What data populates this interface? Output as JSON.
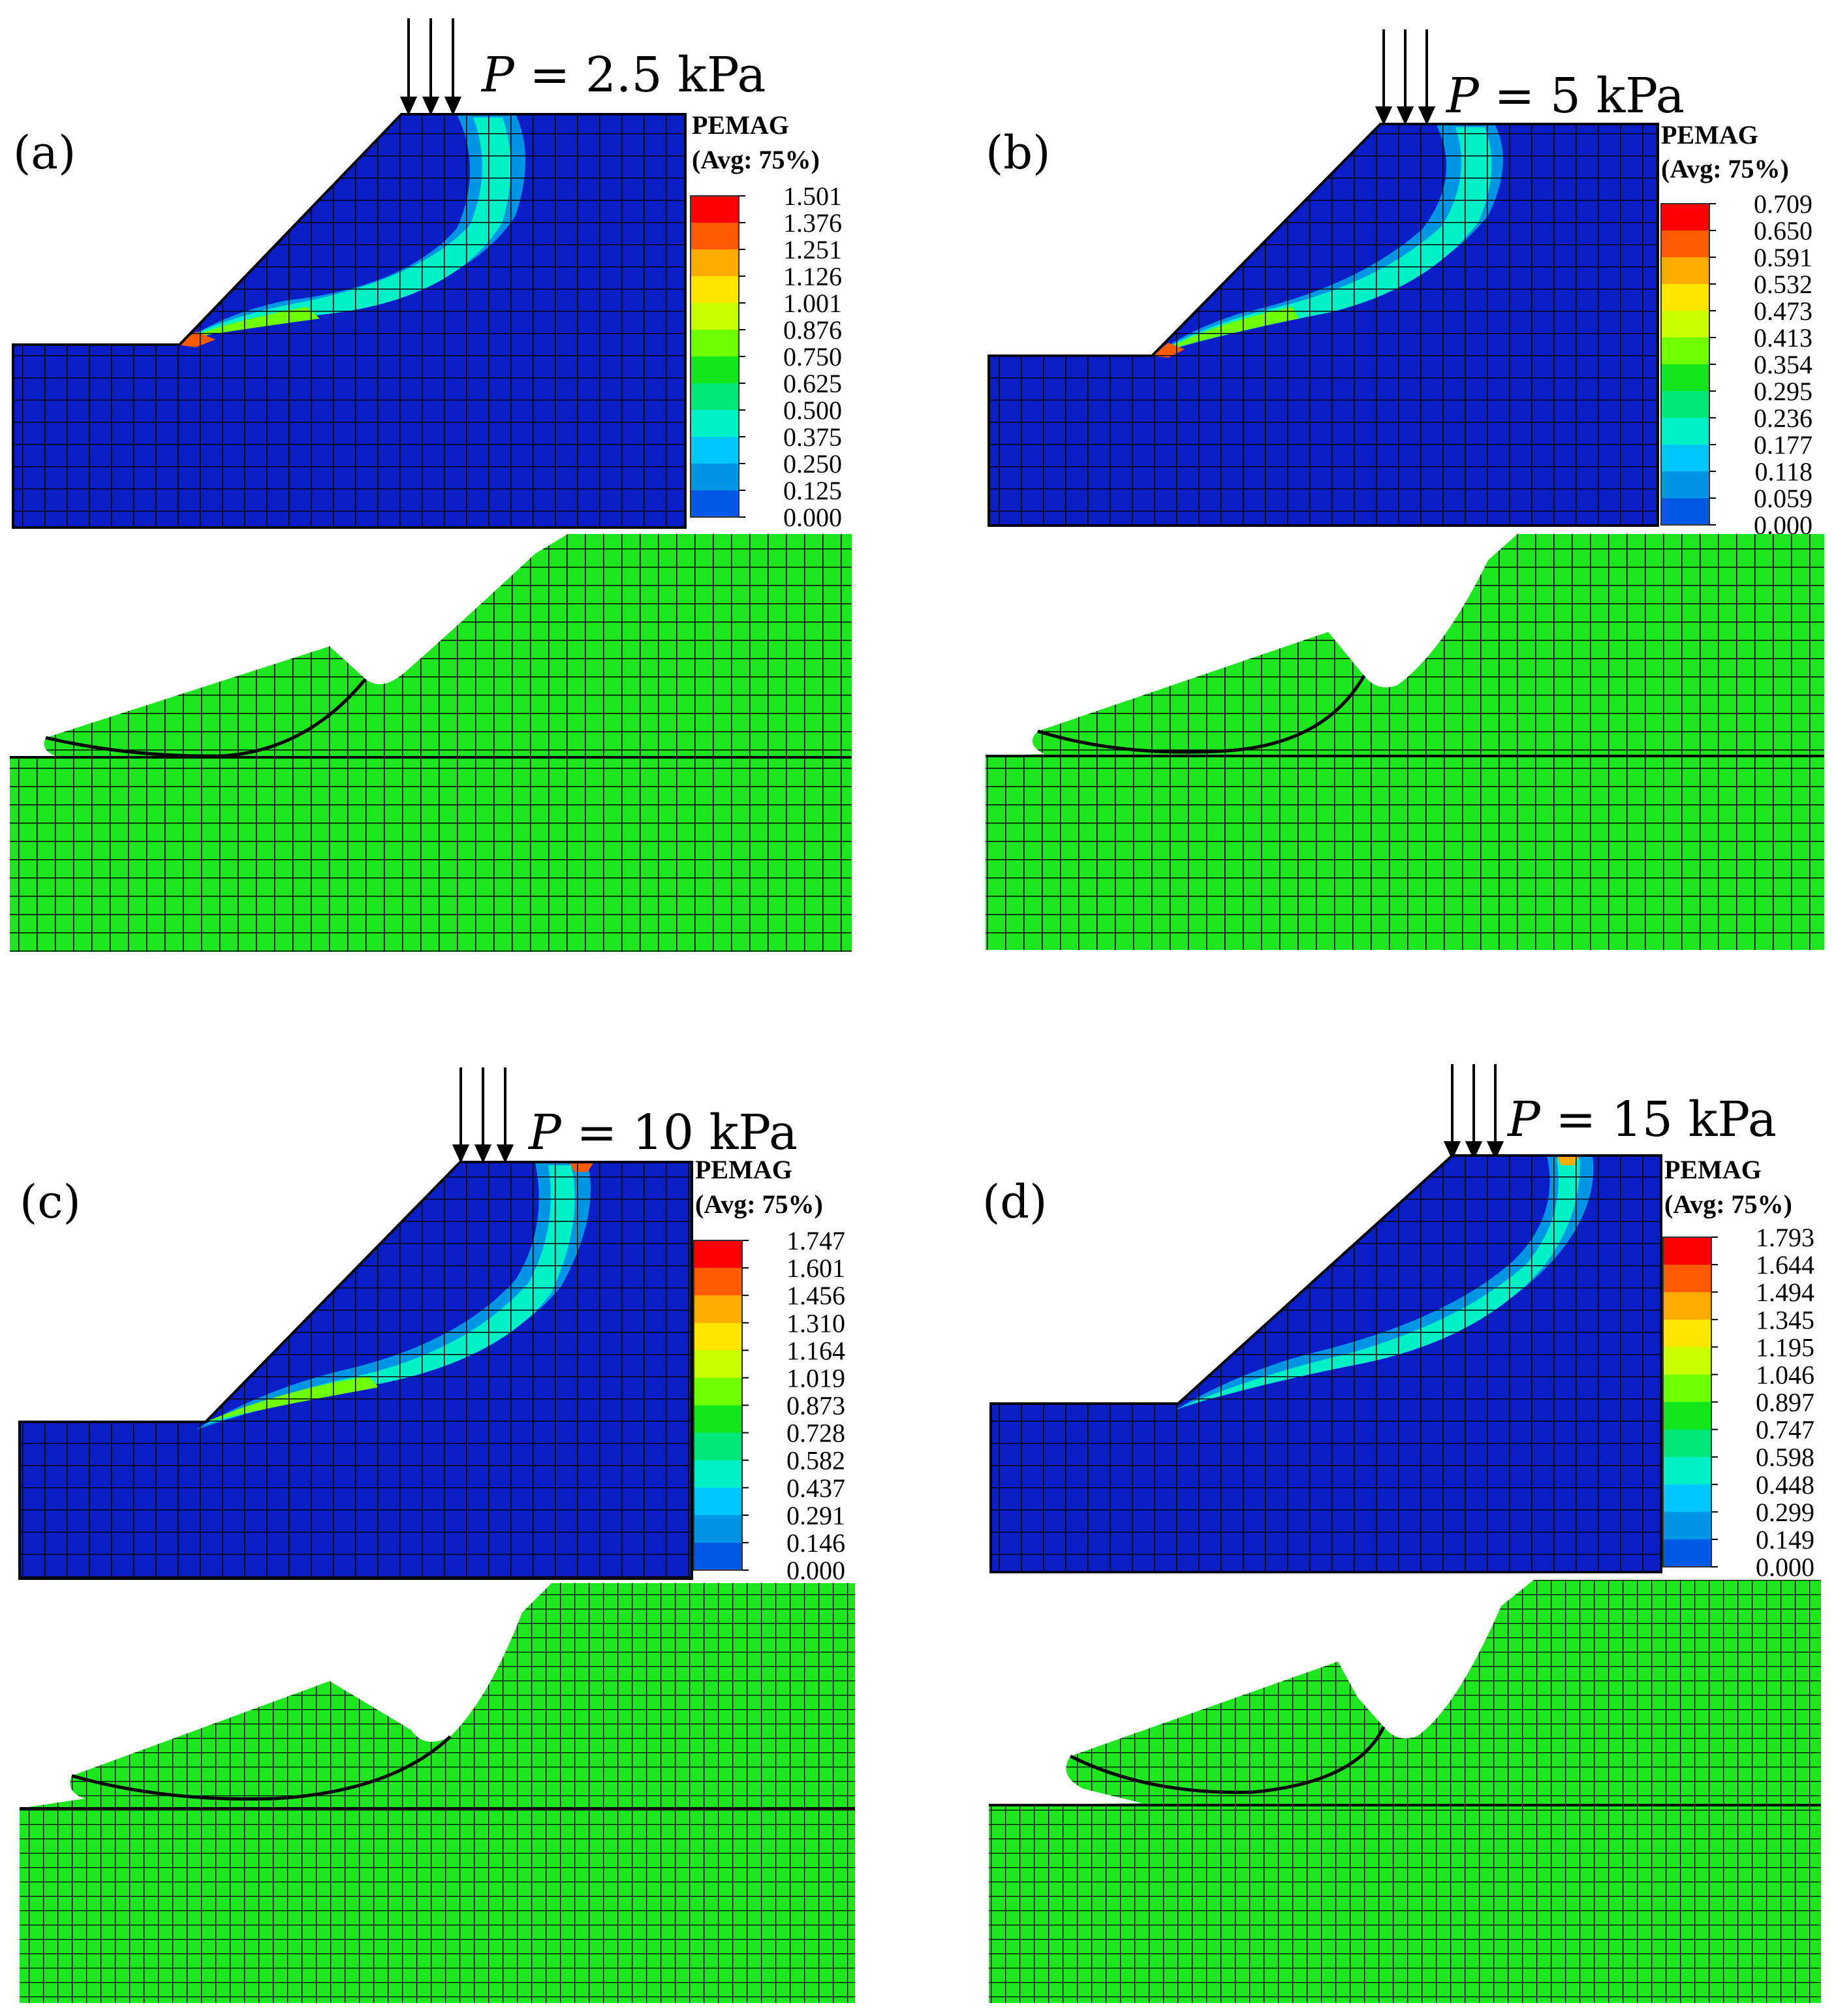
{
  "figure": {
    "panels": [
      {
        "id": "a",
        "label": "(a)",
        "load": {
          "symbol": "P",
          "value_text": " = 2.5 kPa",
          "value_kpa": 2.5
        },
        "legend": {
          "title": "PEMAG",
          "subtitle": "(Avg: 75%)",
          "ticks": [
            "1.501",
            "1.376",
            "1.251",
            "1.126",
            "1.001",
            "0.876",
            "0.750",
            "0.625",
            "0.500",
            "0.375",
            "0.250",
            "0.125",
            "0.000"
          ]
        }
      },
      {
        "id": "b",
        "label": "(b)",
        "load": {
          "symbol": "P",
          "value_text": " = 5 kPa",
          "value_kpa": 5
        },
        "legend": {
          "title": "PEMAG",
          "subtitle": "(Avg: 75%)",
          "ticks": [
            "0.709",
            "0.650",
            "0.591",
            "0.532",
            "0.473",
            "0.413",
            "0.354",
            "0.295",
            "0.236",
            "0.177",
            "0.118",
            "0.059",
            "0.000"
          ]
        }
      },
      {
        "id": "c",
        "label": "(c)",
        "load": {
          "symbol": "P",
          "value_text": " = 10 kPa",
          "value_kpa": 10
        },
        "legend": {
          "title": "PEMAG",
          "subtitle": "(Avg: 75%)",
          "ticks": [
            "1.747",
            "1.601",
            "1.456",
            "1.310",
            "1.164",
            "1.019",
            "0.873",
            "0.728",
            "0.582",
            "0.437",
            "0.291",
            "0.146",
            "0.000"
          ]
        }
      },
      {
        "id": "d",
        "label": "(d)",
        "load": {
          "symbol": "P",
          "value_text": " = 15 kPa",
          "value_kpa": 15
        },
        "legend": {
          "title": "PEMAG",
          "subtitle": "(Avg: 75%)",
          "ticks": [
            "1.793",
            "1.644",
            "1.494",
            "1.345",
            "1.195",
            "1.046",
            "0.897",
            "0.747",
            "0.598",
            "0.448",
            "0.299",
            "0.149",
            "0.000"
          ]
        }
      }
    ],
    "colors": {
      "contour_scale": [
        "#ff0000",
        "#ff5a00",
        "#ffaa00",
        "#ffe600",
        "#c8ff00",
        "#6eff00",
        "#14e61e",
        "#00e678",
        "#00f0c8",
        "#00c8ff",
        "#0096e6",
        "#005ae6",
        "#0000ff"
      ],
      "model_blue": "#0a1ec8",
      "mesh_green": "#1ee61e",
      "mesh_line": "#000000"
    }
  }
}
